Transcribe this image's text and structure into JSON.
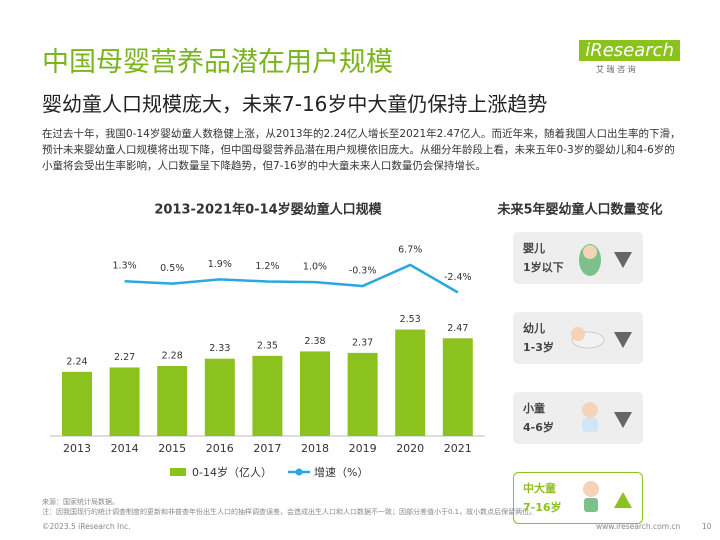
{
  "header": {
    "title": "中国母婴营养品潜在用户规模",
    "subtitle": "婴幼童人口规模庞大，未来7-16岁中大童仍保持上涨趋势",
    "logo": "iResearch",
    "logo_sub": "艾 瑞 咨 询"
  },
  "body": "在过去十年，我国0-14岁婴幼童人数稳健上涨，从2013年的2.24亿人增长至2021年2.47亿人。而近年来，随着我国人口出生率的下滑，预计未来婴幼童人口规模将出现下降，但中国母婴营养品潜在用户规模依旧庞大。从细分年龄段上看，未来五年0-3岁的婴幼儿和4-6岁的小童将会受出生率影响，人口数量呈下降趋势，但7-16岁的中大童未来人口数量仍会保持增长。",
  "chart_data": {
    "type": "combo",
    "title": "2013-2021年0-14岁婴幼童人口规模",
    "categories": [
      "2013",
      "2014",
      "2015",
      "2016",
      "2017",
      "2018",
      "2019",
      "2020",
      "2021"
    ],
    "series": [
      {
        "name": "0-14岁（亿人）",
        "type": "bar",
        "color": "#8cc21e",
        "values": [
          2.24,
          2.27,
          2.28,
          2.33,
          2.35,
          2.38,
          2.37,
          2.53,
          2.47
        ]
      },
      {
        "name": "增速（%）",
        "type": "line",
        "axis": "y2",
        "color": "#2aa7e1",
        "values": [
          null,
          1.3,
          0.5,
          1.9,
          1.2,
          1.0,
          -0.3,
          6.7,
          -2.4
        ],
        "value_labels": [
          null,
          "1.3%",
          "0.5%",
          "1.9%",
          "1.2%",
          "1.0%",
          "-0.3%",
          "6.7%",
          "-2.4%"
        ]
      }
    ],
    "ylim": [
      1.8,
      3.0
    ],
    "y2lim": [
      -50,
      8
    ]
  },
  "panel": {
    "title": "未来5年婴幼童人口数量变化",
    "items": [
      {
        "name": "婴儿",
        "age": "1岁以下"
      },
      {
        "name": "幼儿",
        "age": "1-3岁"
      },
      {
        "name": "小童",
        "age": "4-6岁"
      },
      {
        "name": "中大童",
        "age": "7-16岁"
      }
    ]
  },
  "footer": {
    "source": "来源：国家统计局数据。",
    "note": "注：因我国现行的统计调查制度的更新和非普查年份出生人口的抽样调查误差，会造成出生人口和人口数据不一致；因部分差值小于0.1，故小数点后保留两位。",
    "copyright": "©2023.5 iResearch Inc.",
    "url": "www.iresearch.com.cn",
    "page": "10"
  }
}
